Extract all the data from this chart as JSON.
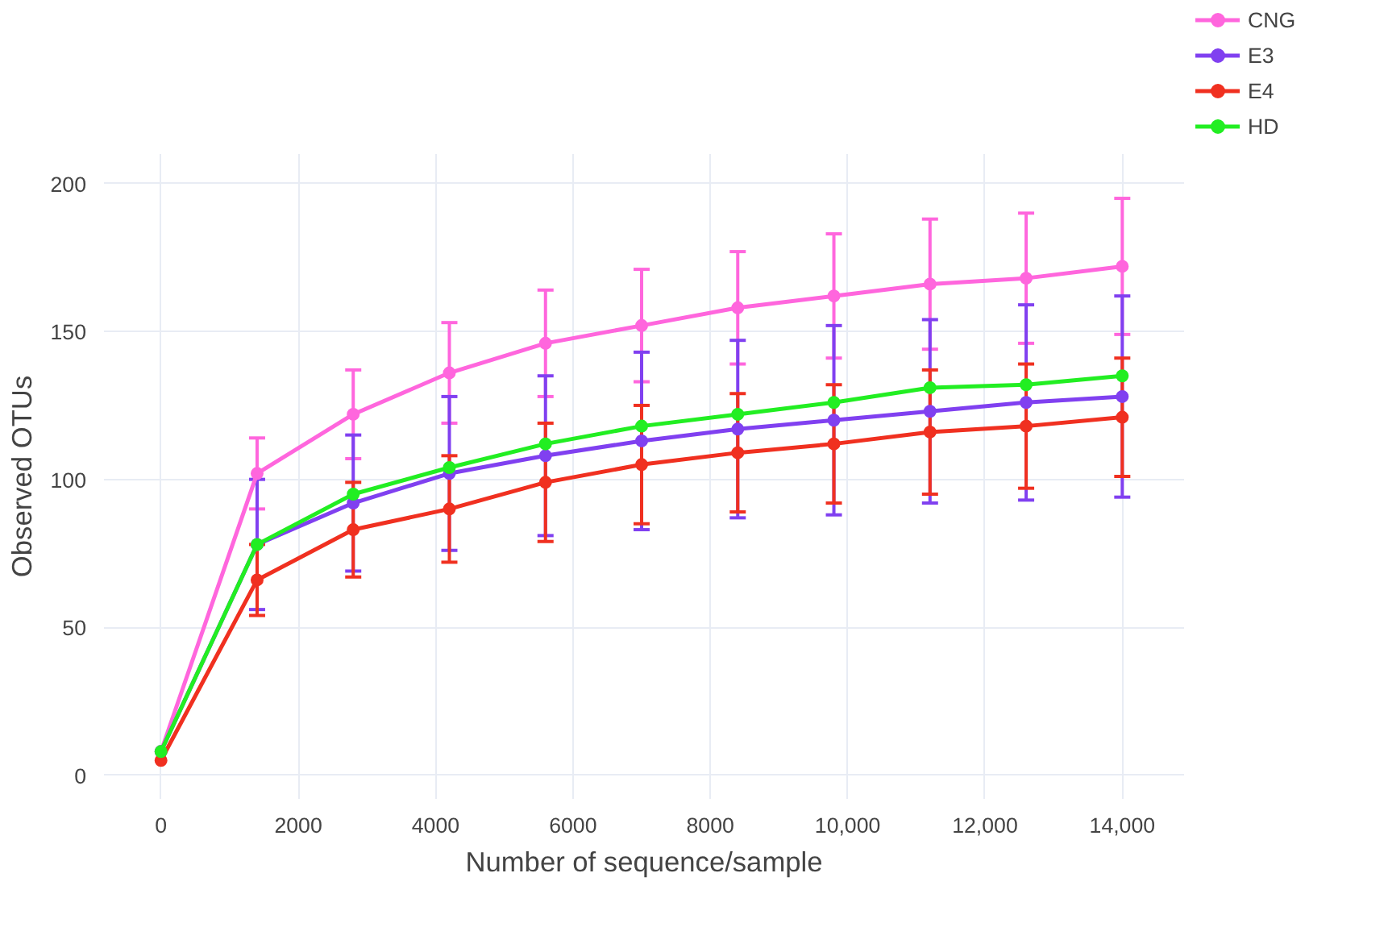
{
  "chart_data": {
    "type": "line",
    "xlabel": "Number of sequence/sample",
    "ylabel": "Observed OTUs",
    "x": [
      0,
      1400,
      2800,
      4200,
      5600,
      7000,
      8400,
      9800,
      11200,
      12600,
      14000
    ],
    "series": [
      {
        "name": "CNG",
        "color": "#ff66dd",
        "values": [
          8,
          102,
          122,
          136,
          146,
          152,
          158,
          162,
          166,
          168,
          172
        ],
        "errors": [
          null,
          12,
          15,
          17,
          18,
          19,
          19,
          21,
          22,
          22,
          23
        ]
      },
      {
        "name": "E3",
        "color": "#8040f0",
        "values": [
          8,
          78,
          92,
          102,
          108,
          113,
          117,
          120,
          123,
          126,
          128
        ],
        "errors": [
          null,
          22,
          23,
          26,
          27,
          30,
          30,
          32,
          31,
          33,
          34
        ]
      },
      {
        "name": "E4",
        "color": "#f03020",
        "values": [
          5,
          66,
          83,
          90,
          99,
          105,
          109,
          112,
          116,
          118,
          121
        ],
        "errors": [
          null,
          12,
          16,
          18,
          20,
          20,
          20,
          20,
          21,
          21,
          20
        ]
      },
      {
        "name": "HD",
        "color": "#22ee22",
        "values": [
          8,
          78,
          95,
          104,
          112,
          118,
          122,
          126,
          131,
          132,
          135
        ]
      }
    ],
    "xlim": [
      -830,
      14900
    ],
    "ylim": [
      -8,
      210
    ],
    "xticks": [
      0,
      2000,
      4000,
      6000,
      8000,
      {
        "value": 10000,
        "label": "10,000"
      },
      {
        "value": 12000,
        "label": "12,000"
      },
      {
        "value": 14000,
        "label": "14,000"
      }
    ],
    "yticks": [
      0,
      50,
      100,
      150,
      200
    ],
    "grid": true,
    "legend": "top right",
    "marker": "circle",
    "line_style": "solid"
  }
}
